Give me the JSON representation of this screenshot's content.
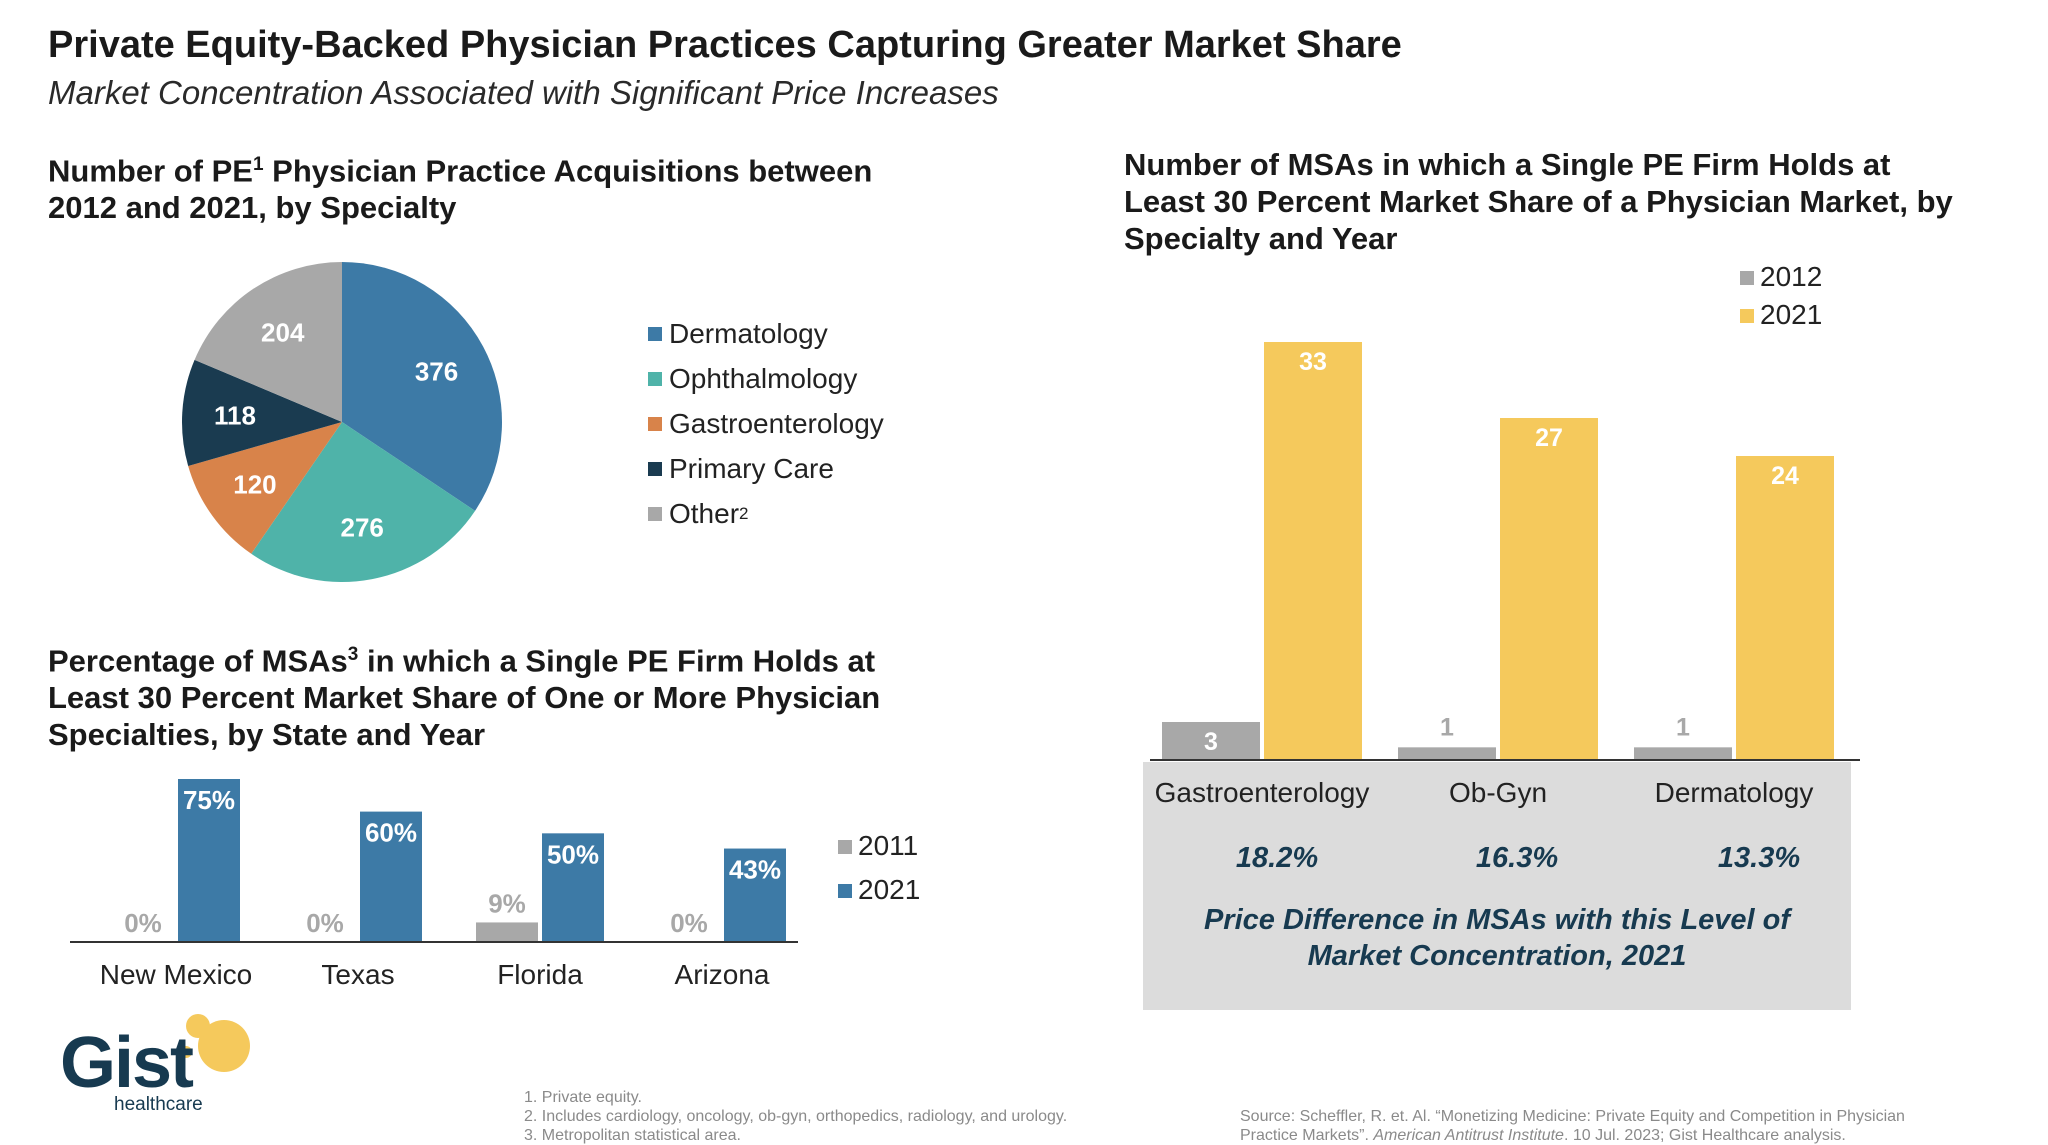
{
  "header": {
    "title": "Private Equity-Backed Physician Practices Capturing Greater Market Share",
    "subtitle": "Market Concentration Associated with Significant Price Increases"
  },
  "pie_section": {
    "title_part1": "Number of PE",
    "title_sup": "1",
    "title_part2": " Physician Practice Acquisitions between 2012 and 2021, by Specialty",
    "legend": [
      {
        "label": "Dermatology",
        "sup": ""
      },
      {
        "label": "Ophthalmology",
        "sup": ""
      },
      {
        "label": "Gastroenterology",
        "sup": ""
      },
      {
        "label": "Primary Care",
        "sup": ""
      },
      {
        "label": "Other",
        "sup": "2"
      }
    ]
  },
  "state_section": {
    "title_part1": "Percentage of MSAs",
    "title_sup": "3",
    "title_part2": " in which a Single PE Firm Holds at Least 30 Percent Market Share of One or More Physician Specialties, by State and Year"
  },
  "msa_section": {
    "title": "Number of MSAs in which a Single PE Firm Holds at Least 30 Percent Market Share of a Physician Market, by Specialty and Year"
  },
  "price_panel": {
    "values": [
      "18.2%",
      "16.3%",
      "13.3%"
    ],
    "caption_line1": "Price Difference in MSAs with this Level of",
    "caption_line2": "Market Concentration, 2021"
  },
  "footnotes": [
    "1. Private equity.",
    "2. Includes cardiology, oncology, ob-gyn, orthopedics, radiology, and urology.",
    "3. Metropolitan statistical area."
  ],
  "source": {
    "part1": "Source: Scheffler, R. et. Al. “Monetizing Medicine: Private Equity and Competition in Physician Practice Markets”. ",
    "italic": "American Antitrust Institute",
    "part2": ". 10 Jul. 2023; Gist Healthcare analysis."
  },
  "logo": {
    "word": "Gist",
    "sub": "healthcare"
  },
  "colors": {
    "dermatology": "#3d7aa6",
    "ophthalmology": "#4fb3a9",
    "gastroenterology": "#d8834a",
    "primary_care": "#1a3b50",
    "other": "#a8a8a8",
    "year_2011": "#a8a8a8",
    "year_2021_blue": "#3d7aa6",
    "year_2012": "#a8a8a8",
    "year_2021_yellow": "#f5c95c",
    "navy_text": "#173a50"
  },
  "chart_data": [
    {
      "type": "pie",
      "categories": [
        "Dermatology",
        "Ophthalmology",
        "Gastroenterology",
        "Primary Care",
        "Other"
      ],
      "values": [
        376,
        276,
        120,
        118,
        204
      ]
    },
    {
      "type": "bar",
      "categories": [
        "New Mexico",
        "Texas",
        "Florida",
        "Arizona"
      ],
      "series": [
        {
          "name": "2011",
          "values": [
            0,
            0,
            9,
            0
          ],
          "labels": [
            "0%",
            "0%",
            "9%",
            "0%"
          ]
        },
        {
          "name": "2021",
          "values": [
            75,
            60,
            50,
            43
          ],
          "labels": [
            "75%",
            "60%",
            "50%",
            "43%"
          ]
        }
      ],
      "ylim": [
        0,
        80
      ]
    },
    {
      "type": "bar",
      "categories": [
        "Gastroenterology",
        "Ob-Gyn",
        "Dermatology"
      ],
      "series": [
        {
          "name": "2012",
          "values": [
            3,
            1,
            1
          ]
        },
        {
          "name": "2021",
          "values": [
            33,
            27,
            24
          ]
        }
      ],
      "ylim": [
        0,
        35
      ]
    }
  ]
}
